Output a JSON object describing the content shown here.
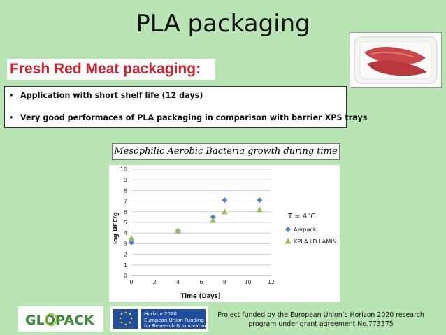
{
  "slide": {
    "title": "PLA packaging",
    "subheading": "Fresh Red Meat packaging:",
    "bullets": [
      "Application with short shelf life (12 days)",
      "Very good performaces of PLA packaging in comparison with barrier XPS trays"
    ],
    "chart_caption": "Mesophilic Aerobic Bacteria growth during time",
    "funding_line1": "Project funded by the European Union’s Horizon 2020 research",
    "funding_line2": "program under grant agreement No.773375",
    "logo_glopack_text": "GLOPACK",
    "logo_eu_text": [
      "Horizon 2020",
      "European Union Funding",
      "for Research & Innovation"
    ]
  },
  "colors": {
    "background": "#b9e4b4",
    "accent_red": "#d0202b",
    "aerpack": "#4f81bd",
    "xpla": "#9bbb59"
  },
  "chart_data": {
    "type": "scatter",
    "xlabel": "Time (Days)",
    "ylabel": "log UFC/g",
    "xlim": [
      0,
      12
    ],
    "ylim": [
      0,
      10
    ],
    "xticks": [
      0,
      2,
      4,
      6,
      8,
      10,
      12
    ],
    "yticks": [
      0,
      1,
      2,
      3,
      4,
      5,
      6,
      7,
      8,
      9,
      10
    ],
    "grid": "horizontal",
    "legend_title": "T = 4°C",
    "legend_position": "right",
    "series": [
      {
        "name": "Aerpack",
        "marker": "diamond",
        "color": "#4f81bd",
        "points": [
          [
            0,
            3.1
          ],
          [
            4,
            4.2
          ],
          [
            7,
            5.5
          ],
          [
            8,
            7.1
          ],
          [
            11,
            7.1
          ]
        ]
      },
      {
        "name": "XPLA LD LAMIN.",
        "marker": "triangle",
        "color": "#9bbb59",
        "points": [
          [
            0,
            3.5
          ],
          [
            4,
            4.2
          ],
          [
            7,
            5.2
          ],
          [
            8,
            6.0
          ],
          [
            11,
            6.2
          ]
        ]
      }
    ]
  }
}
